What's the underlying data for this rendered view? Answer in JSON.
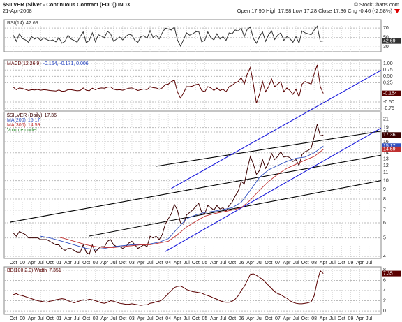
{
  "header": {
    "title": "$SILVER (Silver - Continuous Contract (EOD)) INDX",
    "date": "21-Apr-2008",
    "source": "© StockCharts.com",
    "quote": "Open 17.90 High 17.98 Low 17.28 Close 17.36 Chg -0.46 (-2.58%)"
  },
  "chart_data": {
    "type": "line",
    "xlim": [
      "1999-07",
      "2009-11"
    ],
    "xticks": [
      {
        "value": "1999-10",
        "label": "Oct"
      },
      {
        "value": "2000-01",
        "label": "00"
      },
      {
        "value": "2000-04",
        "label": "Apr"
      },
      {
        "value": "2000-07",
        "label": "Jul"
      },
      {
        "value": "2000-10",
        "label": "Oct"
      },
      {
        "value": "2001-01",
        "label": "01"
      },
      {
        "value": "2001-04",
        "label": "Apr"
      },
      {
        "value": "2001-07",
        "label": "Jul"
      },
      {
        "value": "2001-10",
        "label": "Oct"
      },
      {
        "value": "2002-01",
        "label": "02"
      },
      {
        "value": "2002-04",
        "label": "Apr"
      },
      {
        "value": "2002-07",
        "label": "Jul"
      },
      {
        "value": "2002-10",
        "label": "Oct"
      },
      {
        "value": "2003-01",
        "label": "03"
      },
      {
        "value": "2003-04",
        "label": "Apr"
      },
      {
        "value": "2003-07",
        "label": "Jul"
      },
      {
        "value": "2003-10",
        "label": "Oct"
      },
      {
        "value": "2004-01",
        "label": "04"
      },
      {
        "value": "2004-04",
        "label": "Apr"
      },
      {
        "value": "2004-07",
        "label": "Jul"
      },
      {
        "value": "2004-10",
        "label": "Oct"
      },
      {
        "value": "2005-01",
        "label": "05"
      },
      {
        "value": "2005-04",
        "label": "Apr"
      },
      {
        "value": "2005-07",
        "label": "Jul"
      },
      {
        "value": "2005-10",
        "label": "Oct"
      },
      {
        "value": "2006-01",
        "label": "06"
      },
      {
        "value": "2006-04",
        "label": "Apr"
      },
      {
        "value": "2006-07",
        "label": "Jul"
      },
      {
        "value": "2006-10",
        "label": "Oct"
      },
      {
        "value": "2007-01",
        "label": "07"
      },
      {
        "value": "2007-04",
        "label": "Apr"
      },
      {
        "value": "2007-07",
        "label": "Jul"
      },
      {
        "value": "2007-10",
        "label": "Oct"
      },
      {
        "value": "2008-01",
        "label": "08"
      },
      {
        "value": "2008-04",
        "label": "Apr"
      },
      {
        "value": "2008-07",
        "label": "Jul"
      },
      {
        "value": "2008-10",
        "label": "Oct"
      },
      {
        "value": "2009-01",
        "label": "09"
      },
      {
        "value": "2009-04",
        "label": "Apr"
      },
      {
        "value": "2009-07",
        "label": "Jul"
      }
    ],
    "x": [
      "1999-10",
      "1999-11",
      "1999-12",
      "2000-01",
      "2000-02",
      "2000-03",
      "2000-04",
      "2000-05",
      "2000-06",
      "2000-07",
      "2000-08",
      "2000-09",
      "2000-10",
      "2000-11",
      "2000-12",
      "2001-01",
      "2001-02",
      "2001-03",
      "2001-04",
      "2001-05",
      "2001-06",
      "2001-07",
      "2001-08",
      "2001-09",
      "2001-10",
      "2001-11",
      "2001-12",
      "2002-01",
      "2002-02",
      "2002-03",
      "2002-04",
      "2002-05",
      "2002-06",
      "2002-07",
      "2002-08",
      "2002-09",
      "2002-10",
      "2002-11",
      "2002-12",
      "2003-01",
      "2003-02",
      "2003-03",
      "2003-04",
      "2003-05",
      "2003-06",
      "2003-07",
      "2003-08",
      "2003-09",
      "2003-10",
      "2003-11",
      "2003-12",
      "2004-01",
      "2004-02",
      "2004-03",
      "2004-04",
      "2004-05",
      "2004-06",
      "2004-07",
      "2004-08",
      "2004-09",
      "2004-10",
      "2004-11",
      "2004-12",
      "2005-01",
      "2005-02",
      "2005-03",
      "2005-04",
      "2005-05",
      "2005-06",
      "2005-07",
      "2005-08",
      "2005-09",
      "2005-10",
      "2005-11",
      "2005-12",
      "2006-01",
      "2006-02",
      "2006-03",
      "2006-04",
      "2006-05",
      "2006-06",
      "2006-07",
      "2006-08",
      "2006-09",
      "2006-10",
      "2006-11",
      "2006-12",
      "2007-01",
      "2007-02",
      "2007-03",
      "2007-04",
      "2007-05",
      "2007-06",
      "2007-07",
      "2007-08",
      "2007-09",
      "2007-10",
      "2007-11",
      "2007-12",
      "2008-01",
      "2008-02",
      "2008-03",
      "2008-04"
    ],
    "panels": [
      {
        "ylim": [
          20,
          88
        ],
        "yticks": [
          70,
          50,
          30
        ],
        "series": [
          {
            "name": "RSI(14)",
            "color": "#333333",
            "values": [
              55,
              42,
              58,
              48,
              45,
              40,
              52,
              47,
              50,
              44,
              49,
              46,
              43,
              45,
              41,
              50,
              38,
              42,
              55,
              47,
              44,
              40,
              52,
              62,
              39,
              44,
              60,
              41,
              56,
              53,
              50,
              63,
              58,
              42,
              47,
              51,
              45,
              52,
              57,
              55,
              44,
              40,
              52,
              54,
              48,
              65,
              50,
              55,
              47,
              60,
              70,
              68,
              66,
              72,
              45,
              32,
              45,
              60,
              55,
              58,
              62,
              63,
              41,
              44,
              62,
              50,
              45,
              58,
              47,
              52,
              44,
              60,
              58,
              66,
              64,
              70,
              52,
              68,
              72,
              48,
              38,
              52,
              62,
              42,
              56,
              64,
              46,
              55,
              60,
              44,
              52,
              48,
              40,
              52,
              38,
              64,
              60,
              58,
              56,
              66,
              74,
              42,
              42.69
            ]
          }
        ]
      },
      {
        "ylim": [
          -0.83,
          1.14
        ],
        "yticks": [
          {
            "value": 1,
            "label": "1.00"
          },
          {
            "value": 0.75,
            "label": "0.75"
          },
          {
            "value": 0.5,
            "label": "0.50"
          },
          {
            "value": 0.25,
            "label": "0.25"
          },
          {
            "value": -0.5,
            "label": "-0.50"
          },
          {
            "value": -0.75,
            "label": "-0.75"
          }
        ],
        "readout": "-0.164, -0.171, 0.006",
        "series": [
          {
            "name": "MACD(12,26,9)",
            "color": "#5a0000",
            "values": [
              0.08,
              -0.02,
              0.05,
              0.03,
              -0.01,
              -0.05,
              -0.02,
              -0.03,
              -0.01,
              -0.04,
              -0.02,
              -0.03,
              -0.05,
              -0.06,
              -0.07,
              -0.03,
              -0.08,
              -0.07,
              -0.02,
              -0.02,
              -0.04,
              -0.06,
              -0.05,
              0.05,
              -0.04,
              -0.06,
              0.04,
              -0.02,
              0.03,
              0.05,
              0.04,
              0.08,
              0.09,
              0.0,
              -0.03,
              -0.02,
              -0.04,
              0.0,
              0.04,
              0.05,
              0.0,
              -0.05,
              -0.02,
              0.01,
              -0.02,
              0.1,
              0.06,
              0.05,
              0.0,
              0.05,
              0.18,
              0.2,
              0.3,
              0.35,
              -0.1,
              -0.35,
              -0.15,
              0.1,
              0.1,
              0.12,
              0.18,
              0.2,
              -0.05,
              -0.1,
              0.1,
              0.05,
              -0.05,
              0.05,
              -0.05,
              0.0,
              -0.1,
              0.1,
              0.15,
              0.25,
              0.3,
              0.45,
              0.2,
              0.6,
              0.85,
              0.2,
              -0.55,
              -0.2,
              0.3,
              -0.1,
              0.1,
              0.4,
              0.1,
              0.2,
              0.3,
              -0.1,
              0.05,
              -0.05,
              -0.2,
              0.0,
              -0.3,
              0.2,
              0.3,
              0.25,
              0.2,
              0.6,
              0.95,
              0.1,
              -0.164
            ]
          }
        ]
      },
      {
        "ylim": [
          3.9,
          23
        ],
        "log_scale": true,
        "show_xticks": true,
        "yticks": [
          21,
          19,
          18,
          16,
          14,
          13,
          12,
          11,
          10,
          9,
          8,
          7,
          6,
          5,
          4
        ],
        "extra_label": "Volume undef",
        "series": [
          {
            "name": "$SILVER (Daily)",
            "color": "#3a0000",
            "values": [
              5.3,
              5.1,
              5.4,
              5.3,
              5.2,
              5.0,
              5.0,
              5.0,
              5.0,
              4.9,
              4.9,
              4.9,
              4.8,
              4.7,
              4.6,
              4.6,
              4.4,
              4.3,
              4.4,
              4.4,
              4.3,
              4.2,
              4.2,
              4.6,
              4.2,
              4.1,
              4.6,
              4.2,
              4.4,
              4.5,
              4.5,
              4.8,
              4.9,
              4.6,
              4.5,
              4.5,
              4.4,
              4.5,
              4.7,
              4.8,
              4.6,
              4.4,
              4.5,
              4.6,
              4.5,
              5.1,
              5.0,
              5.1,
              4.9,
              5.2,
              5.9,
              6.3,
              6.7,
              7.5,
              7.0,
              6.0,
              5.9,
              6.6,
              6.8,
              7.0,
              7.3,
              7.6,
              6.8,
              6.7,
              7.4,
              7.2,
              7.0,
              7.4,
              7.1,
              7.2,
              6.9,
              7.4,
              7.7,
              8.3,
              8.8,
              9.9,
              9.6,
              11.5,
              13.4,
              12.2,
              10.8,
              11.3,
              12.9,
              11.6,
              12.4,
              13.9,
              12.9,
              13.4,
              14.2,
              13.3,
              13.4,
              13.2,
              12.6,
              12.9,
              12.0,
              13.7,
              14.2,
              14.4,
              14.8,
              17.0,
              19.8,
              17.2,
              17.36
            ]
          },
          {
            "name": "MA(200)",
            "color": "#3050c0",
            "x": [
              "2000-07",
              "2000-10",
              "2001-01",
              "2001-04",
              "2001-07",
              "2001-10",
              "2002-01",
              "2002-04",
              "2002-07",
              "2002-10",
              "2003-01",
              "2003-04",
              "2003-07",
              "2003-10",
              "2004-01",
              "2004-04",
              "2004-07",
              "2004-10",
              "2005-01",
              "2005-04",
              "2005-07",
              "2005-10",
              "2006-01",
              "2006-04",
              "2006-07",
              "2006-10",
              "2007-01",
              "2007-04",
              "2007-07",
              "2007-10",
              "2008-01",
              "2008-04"
            ],
            "values": [
              5.1,
              5.0,
              4.85,
              4.7,
              4.55,
              4.4,
              4.35,
              4.4,
              4.5,
              4.55,
              4.6,
              4.6,
              4.65,
              4.75,
              4.95,
              5.6,
              6.3,
              6.6,
              6.8,
              6.9,
              7.05,
              7.2,
              7.7,
              8.9,
              10.4,
              11.4,
              12.0,
              12.6,
              13.1,
              13.3,
              14.0,
              15.17
            ]
          },
          {
            "name": "MA(300)",
            "color": "#c03030",
            "x": [
              "2001-01",
              "2001-04",
              "2001-07",
              "2001-10",
              "2002-01",
              "2002-04",
              "2002-07",
              "2002-10",
              "2003-01",
              "2003-04",
              "2003-07",
              "2003-10",
              "2004-01",
              "2004-04",
              "2004-07",
              "2004-10",
              "2005-01",
              "2005-04",
              "2005-07",
              "2005-10",
              "2006-01",
              "2006-04",
              "2006-07",
              "2006-10",
              "2007-01",
              "2007-04",
              "2007-07",
              "2007-10",
              "2008-01",
              "2008-04"
            ],
            "values": [
              5.05,
              4.9,
              4.75,
              4.6,
              4.5,
              4.45,
              4.45,
              4.5,
              4.55,
              4.6,
              4.6,
              4.7,
              4.8,
              5.2,
              5.7,
              6.1,
              6.5,
              6.7,
              6.85,
              7.0,
              7.2,
              7.9,
              8.9,
              9.9,
              10.8,
              11.6,
              12.2,
              12.8,
              13.4,
              14.59
            ]
          }
        ],
        "trendlines": [
          {
            "color": "#000000",
            "points": [
              [
                "1999-09",
                6.05
              ],
              [
                "2009-11",
                13.6
              ]
            ]
          },
          {
            "color": "#000000",
            "points": [
              [
                "2003-09",
                11.9
              ],
              [
                "2009-11",
                18.2
              ]
            ]
          },
          {
            "color": "#000000",
            "points": [
              [
                "2001-11",
                5.11
              ],
              [
                "2009-11",
                10.0
              ]
            ]
          },
          {
            "color": "#1a1adc",
            "points": [
              [
                "2004-02",
                9.1
              ],
              [
                "2009-11",
                38
              ]
            ]
          },
          {
            "color": "#1a1adc",
            "points": [
              [
                "2003-12",
                4.24
              ],
              [
                "2009-11",
                18.9
              ]
            ]
          }
        ]
      },
      {
        "ylim": [
          -0.67,
          8.67
        ],
        "show_xticks": true,
        "yticks": [
          8,
          6,
          4,
          2,
          0
        ],
        "series": [
          {
            "name": "BB(100,2.0) Width",
            "color": "#5a0000",
            "values": [
              3.2,
              3.4,
              3.1,
              3.0,
              2.8,
              2.6,
              2.4,
              2.2,
              2.0,
              1.9,
              1.8,
              1.7,
              1.9,
              2.0,
              2.2,
              2.3,
              2.4,
              2.3,
              2.0,
              1.8,
              1.6,
              1.8,
              2.0,
              2.2,
              2.1,
              2.3,
              2.2,
              2.0,
              1.8,
              1.6,
              1.5,
              1.7,
              2.0,
              1.9,
              1.7,
              1.5,
              1.4,
              1.3,
              1.3,
              1.4,
              1.3,
              1.2,
              1.1,
              1.2,
              1.2,
              1.5,
              1.6,
              1.8,
              1.9,
              2.2,
              2.8,
              3.4,
              4.0,
              4.6,
              4.8,
              4.9,
              4.6,
              4.2,
              4.0,
              3.8,
              3.7,
              3.6,
              3.5,
              3.2,
              3.0,
              2.8,
              2.5,
              2.3,
              2.0,
              1.8,
              1.7,
              1.7,
              1.9,
              2.3,
              3.0,
              4.0,
              4.8,
              6.0,
              7.2,
              7.3,
              7.0,
              6.6,
              6.2,
              5.6,
              5.0,
              4.4,
              3.8,
              3.4,
              3.2,
              2.8,
              2.5,
              2.0,
              1.7,
              1.5,
              1.4,
              1.4,
              1.5,
              1.6,
              1.8,
              3.0,
              5.8,
              7.9,
              7.351
            ]
          }
        ]
      }
    ]
  }
}
